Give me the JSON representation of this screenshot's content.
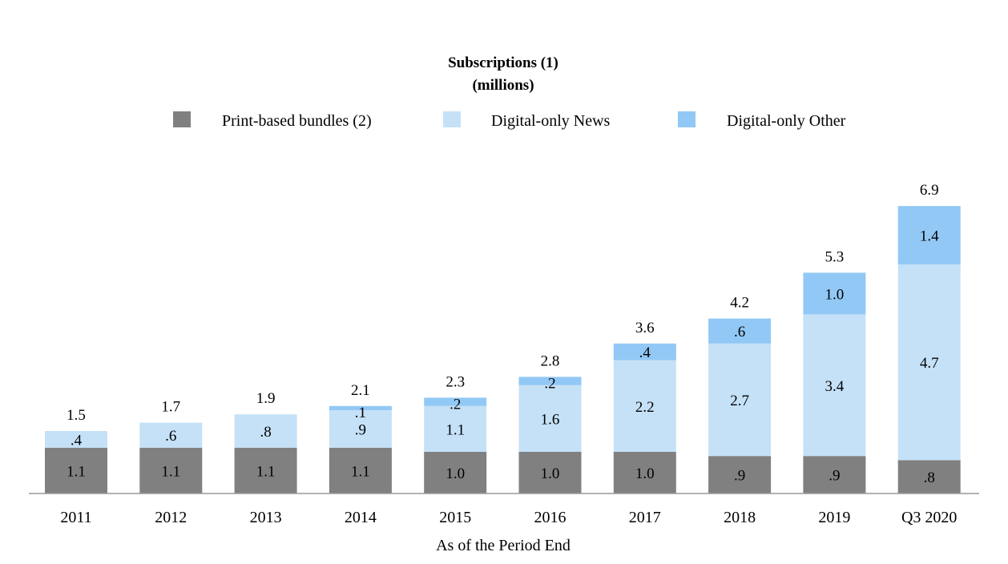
{
  "chart_data": {
    "type": "bar",
    "stacked": true,
    "title": "Subscriptions (1)",
    "subtitle": "(millions)",
    "xlabel": "As of the Period End",
    "ylabel": "",
    "ylim": [
      0,
      7
    ],
    "grid": false,
    "legend_position": "top",
    "categories": [
      "2011",
      "2012",
      "2013",
      "2014",
      "2015",
      "2016",
      "2017",
      "2018",
      "2019",
      "Q3 2020"
    ],
    "series": [
      {
        "name": "Print-based bundles (2)",
        "color": "#808080",
        "values": [
          1.1,
          1.1,
          1.1,
          1.1,
          1.0,
          1.0,
          1.0,
          0.9,
          0.9,
          0.8
        ],
        "labels": [
          "1.1",
          "1.1",
          "1.1",
          "1.1",
          "1.0",
          "1.0",
          "1.0",
          ".9",
          ".9",
          ".8"
        ]
      },
      {
        "name": "Digital-only News",
        "color": "#c5e1f7",
        "values": [
          0.4,
          0.6,
          0.8,
          0.9,
          1.1,
          1.6,
          2.2,
          2.7,
          3.4,
          4.7
        ],
        "labels": [
          ".4",
          ".6",
          ".8",
          ".9",
          "1.1",
          "1.6",
          "2.2",
          "2.7",
          "3.4",
          "4.7"
        ]
      },
      {
        "name": "Digital-only Other",
        "color": "#92c8f5",
        "values": [
          0,
          0,
          0,
          0.1,
          0.2,
          0.2,
          0.4,
          0.6,
          1.0,
          1.4
        ],
        "labels": [
          "",
          "",
          "",
          ".1",
          ".2",
          ".2",
          ".4",
          ".6",
          "1.0",
          "1.4"
        ]
      }
    ],
    "totals": [
      "1.5",
      "1.7",
      "1.9",
      "2.1",
      "2.3",
      "2.8",
      "3.6",
      "4.2",
      "5.3",
      "6.9"
    ]
  }
}
